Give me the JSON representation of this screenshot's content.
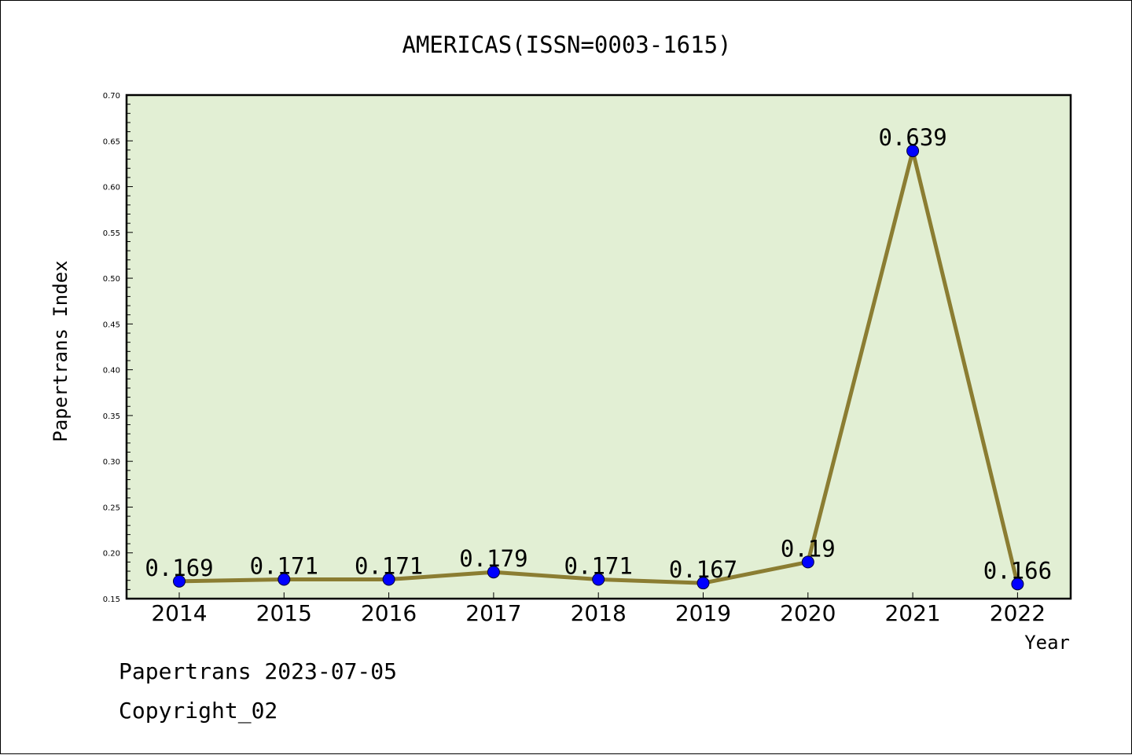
{
  "chart_data": {
    "type": "line",
    "title": "AMERICAS(ISSN=0003-1615)",
    "xlabel": "Year",
    "ylabel": "Papertrans Index",
    "categories": [
      "2014",
      "2015",
      "2016",
      "2017",
      "2018",
      "2019",
      "2020",
      "2021",
      "2022"
    ],
    "series": [
      {
        "values": [
          0.169,
          0.171,
          0.171,
          0.179,
          0.171,
          0.167,
          0.19,
          0.639,
          0.166
        ]
      }
    ],
    "data_labels": [
      "0.169",
      "0.171",
      "0.171",
      "0.179",
      "0.171",
      "0.167",
      "0.19",
      "0.639",
      "0.166"
    ],
    "ylim": [
      0.15,
      0.7
    ],
    "yticks": [
      "0.15",
      "0.20",
      "0.25",
      "0.30",
      "0.35",
      "0.40",
      "0.45",
      "0.50",
      "0.55",
      "0.60",
      "0.65",
      "0.70"
    ],
    "grid": false,
    "plot_background": "#e2efd4",
    "line_color": "#8b7d32",
    "marker_color": "#0000ff"
  },
  "footer": {
    "line1": "Papertrans 2023-07-05",
    "line2": "Copyright_02"
  }
}
